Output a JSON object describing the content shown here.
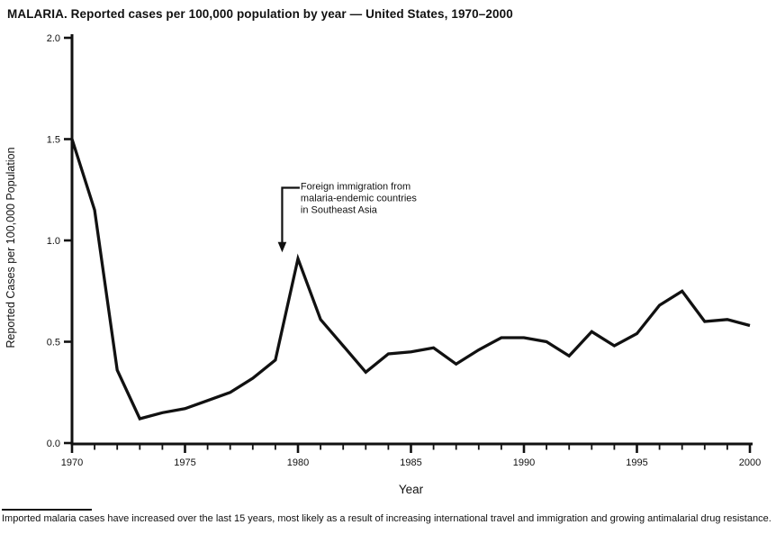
{
  "title": "MALARIA. Reported cases per 100,000 population by year — United States, 1970–2000",
  "chart_data": {
    "type": "line",
    "title": "MALARIA. Reported cases per 100,000 population by year — United States, 1970–2000",
    "xlabel": "Year",
    "ylabel": "Reported Cases per 100,000 Population",
    "ylim": [
      0.0,
      2.0
    ],
    "yticks": [
      0.0,
      0.5,
      1.0,
      1.5,
      2.0
    ],
    "ytick_labels": [
      "0.0",
      "0.5",
      "1.0",
      "1.5",
      "2.0"
    ],
    "xticks": [
      1970,
      1975,
      1980,
      1985,
      1990,
      1995,
      2000
    ],
    "x_minor_step": 1,
    "grid": false,
    "legend": "none",
    "line_color": "#111111",
    "x": [
      1970,
      1971,
      1972,
      1973,
      1974,
      1975,
      1976,
      1977,
      1978,
      1979,
      1980,
      1981,
      1982,
      1983,
      1984,
      1985,
      1986,
      1987,
      1988,
      1989,
      1990,
      1991,
      1992,
      1993,
      1994,
      1995,
      1996,
      1997,
      1998,
      1999,
      2000
    ],
    "values": [
      1.5,
      1.15,
      0.36,
      0.12,
      0.15,
      0.17,
      0.21,
      0.25,
      0.32,
      0.41,
      0.91,
      0.61,
      0.48,
      0.35,
      0.44,
      0.45,
      0.47,
      0.39,
      0.46,
      0.52,
      0.52,
      0.5,
      0.43,
      0.55,
      0.48,
      0.54,
      0.68,
      0.75,
      0.6,
      0.61,
      0.58
    ],
    "annotation": {
      "lines": [
        "Foreign immigration from",
        "malaria-endemic countries",
        "in Southeast Asia"
      ],
      "arrow": {
        "year": 1979.3,
        "from_value": 1.26,
        "to_value": 0.95
      }
    }
  },
  "footer": {
    "text": "Imported malaria cases have increased over the last 15 years, most likely as a result of increasing international travel and immigration and growing antimalarial drug resistance."
  }
}
